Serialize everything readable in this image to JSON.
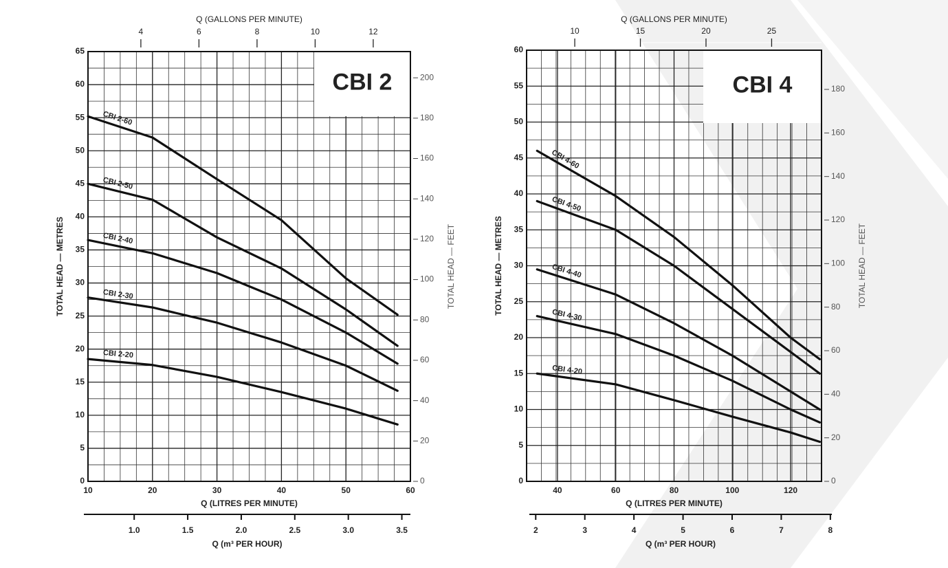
{
  "chart_data": [
    {
      "type": "line",
      "title": "CBI 2",
      "x_label": "Q (LITRES PER MINUTE)",
      "x2_label": "Q (GALLONS PER MINUTE)",
      "x3_label": "Q (m³ PER HOUR)",
      "y_label": "TOTAL HEAD — METRES",
      "y2_label": "TOTAL HEAD — FEET",
      "x": [
        10,
        20,
        30,
        40,
        50,
        58
      ],
      "series": [
        {
          "name": "CBI 2-60",
          "color": "#111111",
          "values": [
            55.2,
            52,
            45.7,
            39.5,
            30.7,
            25.2
          ]
        },
        {
          "name": "CBI 2-50",
          "color": "#111111",
          "values": [
            45,
            42.6,
            36.9,
            32.2,
            26,
            20.5
          ]
        },
        {
          "name": "CBI 2-40",
          "color": "#111111",
          "values": [
            36.5,
            34.5,
            31.5,
            27.5,
            22.5,
            17.8
          ]
        },
        {
          "name": "CBI 2-30",
          "color": "#111111",
          "values": [
            27.8,
            26.3,
            24,
            21,
            17.5,
            13.7
          ]
        },
        {
          "name": "CBI 2-20",
          "color": "#111111",
          "values": [
            18.5,
            17.6,
            15.8,
            13.5,
            11,
            8.6
          ]
        }
      ],
      "xlim": [
        10,
        60
      ],
      "xticks": [
        10,
        20,
        30,
        40,
        50,
        60
      ],
      "ylim": [
        0,
        65
      ],
      "yticks": [
        0,
        5,
        10,
        15,
        20,
        25,
        30,
        35,
        40,
        45,
        50,
        55,
        60,
        65
      ],
      "y2lim": [
        0,
        213
      ],
      "y2ticks": [
        0,
        20,
        40,
        60,
        80,
        100,
        120,
        140,
        160,
        180,
        200
      ],
      "x2lim": [
        2.18,
        13.28
      ],
      "x2ticks": [
        4,
        6,
        8,
        10,
        12
      ],
      "x3lim": [
        0.53,
        3.58
      ],
      "x3ticks": [
        {
          "value": 1,
          "label": "1.0"
        },
        1.5,
        {
          "value": 2,
          "label": "2.0"
        },
        2.5,
        {
          "value": 3,
          "label": "3.0"
        },
        3.5
      ],
      "grid": true
    },
    {
      "type": "line",
      "title": "CBI 4",
      "x_label": "Q (LITRES PER MINUTE)",
      "x2_label": "Q (GALLONS PER MINUTE)",
      "x3_label": "Q (m³ PER HOUR)",
      "y_label": "TOTAL HEAD — METRES",
      "y2_label": "TOTAL HEAD — FEET",
      "x": [
        33,
        60,
        80,
        100,
        120,
        130
      ],
      "series": [
        {
          "name": "CBI 4-60",
          "color": "#111111",
          "values": [
            46,
            39.7,
            34,
            27.3,
            20,
            17
          ]
        },
        {
          "name": "CBI 4-50",
          "color": "#111111",
          "values": [
            39,
            35,
            30,
            24,
            18,
            15
          ]
        },
        {
          "name": "CBI 4-40",
          "color": "#111111",
          "values": [
            29.5,
            26,
            22,
            17.5,
            12.5,
            10
          ]
        },
        {
          "name": "CBI 4-30",
          "color": "#111111",
          "values": [
            23,
            20.5,
            17.5,
            14,
            10,
            8.2
          ]
        },
        {
          "name": "CBI 4-20",
          "color": "#111111",
          "values": [
            15,
            13.5,
            11.3,
            9,
            6.8,
            5.5
          ]
        }
      ],
      "xlim": [
        29.4,
        130.6
      ],
      "xticks": [
        40,
        60,
        80,
        100,
        120
      ],
      "ylim": [
        0,
        60
      ],
      "yticks": [
        0,
        5,
        10,
        15,
        20,
        25,
        30,
        35,
        40,
        45,
        50,
        55,
        60
      ],
      "y2lim": [
        0,
        198
      ],
      "y2ticks": [
        0,
        20,
        40,
        60,
        80,
        100,
        120,
        140,
        160,
        180
      ],
      "x2lim": [
        6.33,
        28.8
      ],
      "x2ticks": [
        10,
        15,
        20,
        25
      ],
      "x3lim": [
        1.87,
        8.03
      ],
      "x3ticks": [
        2,
        3,
        4,
        5,
        6,
        7,
        8
      ],
      "grid": true
    }
  ]
}
